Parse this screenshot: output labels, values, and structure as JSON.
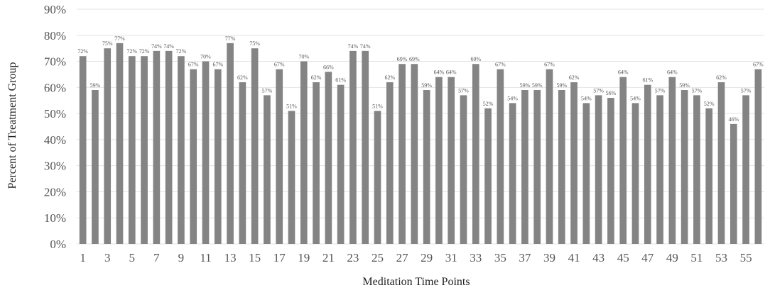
{
  "chart_data": {
    "type": "bar",
    "title": "",
    "xlabel": "Meditation Time Points",
    "ylabel": "Percent of Treatment Group",
    "ylim": [
      0,
      90
    ],
    "y_ticks": [
      "0%",
      "10%",
      "20%",
      "30%",
      "40%",
      "50%",
      "60%",
      "70%",
      "80%",
      "90%"
    ],
    "x_tick_labels": [
      "1",
      "3",
      "5",
      "7",
      "9",
      "11",
      "13",
      "15",
      "17",
      "19",
      "21",
      "23",
      "25",
      "27",
      "29",
      "31",
      "33",
      "35",
      "37",
      "39",
      "41",
      "43",
      "45",
      "47",
      "49",
      "51",
      "53",
      "55"
    ],
    "grid": true,
    "legend": "none",
    "bar_color": "#848484",
    "categories": [
      "1",
      "2",
      "3",
      "4",
      "5",
      "6",
      "7",
      "8",
      "9",
      "10",
      "11",
      "12",
      "13",
      "14",
      "15",
      "16",
      "17",
      "18",
      "19",
      "20",
      "21",
      "22",
      "23",
      "24",
      "25",
      "26",
      "27",
      "28",
      "29",
      "30",
      "31",
      "32",
      "33",
      "34",
      "35",
      "36",
      "37",
      "38",
      "39",
      "40",
      "41",
      "42",
      "43",
      "44",
      "45",
      "46",
      "47",
      "48",
      "49",
      "50",
      "51",
      "52",
      "53",
      "54",
      "55",
      "56"
    ],
    "values": [
      72,
      59,
      75,
      77,
      72,
      72,
      74,
      74,
      72,
      67,
      70,
      67,
      77,
      62,
      75,
      57,
      67,
      51,
      70,
      62,
      66,
      61,
      74,
      74,
      51,
      62,
      69,
      69,
      59,
      64,
      64,
      57,
      69,
      52,
      67,
      54,
      59,
      59,
      67,
      59,
      62,
      54,
      57,
      56,
      64,
      54,
      61,
      57,
      64,
      59,
      57,
      52,
      62,
      46,
      57,
      67
    ],
    "data_labels": [
      "72%",
      "59%",
      "75%",
      "77%",
      "72%",
      "72%",
      "74%",
      "74%",
      "72%",
      "67%",
      "70%",
      "67%",
      "77%",
      "62%",
      "75%",
      "57%",
      "67%",
      "51%",
      "70%",
      "62%",
      "66%",
      "61%",
      "74%",
      "74%",
      "51%",
      "62%",
      "69%",
      "69%",
      "59%",
      "64%",
      "64%",
      "57%",
      "69%",
      "52%",
      "67%",
      "54%",
      "59%",
      "59%",
      "67%",
      "59%",
      "62%",
      "54%",
      "57%",
      "56%",
      "64%",
      "54%",
      "61%",
      "57%",
      "64%",
      "59%",
      "57%",
      "52%",
      "62%",
      "46%",
      "57%",
      "67%"
    ]
  }
}
